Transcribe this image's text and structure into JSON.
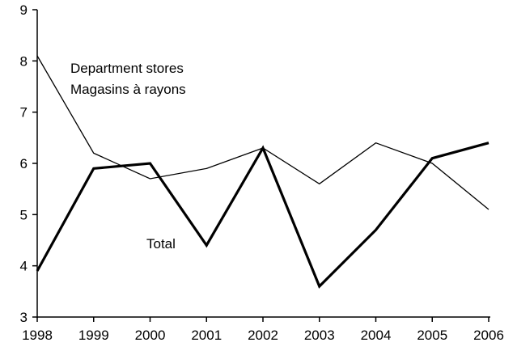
{
  "chart_data": {
    "type": "line",
    "x": [
      1998,
      1999,
      2000,
      2001,
      2002,
      2003,
      2004,
      2005,
      2006
    ],
    "x_tick_labels": [
      "1998",
      "1999",
      "2000",
      "2001",
      "2002",
      "2003",
      "2004",
      "2005",
      "2006"
    ],
    "y_tick_labels": [
      "3",
      "4",
      "5",
      "6",
      "7",
      "8",
      "9"
    ],
    "ylim": [
      3,
      9
    ],
    "grid": false,
    "legend": "none",
    "series": [
      {
        "name": "Department stores Magasins à rayons",
        "values": [
          8.1,
          6.2,
          5.7,
          5.9,
          6.3,
          5.6,
          6.4,
          6.0,
          5.1
        ],
        "color": "#000000",
        "weight": "thin"
      },
      {
        "name": "Total",
        "values": [
          3.9,
          5.9,
          6.0,
          4.4,
          6.3,
          3.6,
          4.7,
          6.1,
          6.4
        ],
        "color": "#000000",
        "weight": "thick"
      }
    ],
    "annotations": {
      "department_line1": "Department stores",
      "department_line2": "Magasins à rayons",
      "total": "Total"
    }
  }
}
